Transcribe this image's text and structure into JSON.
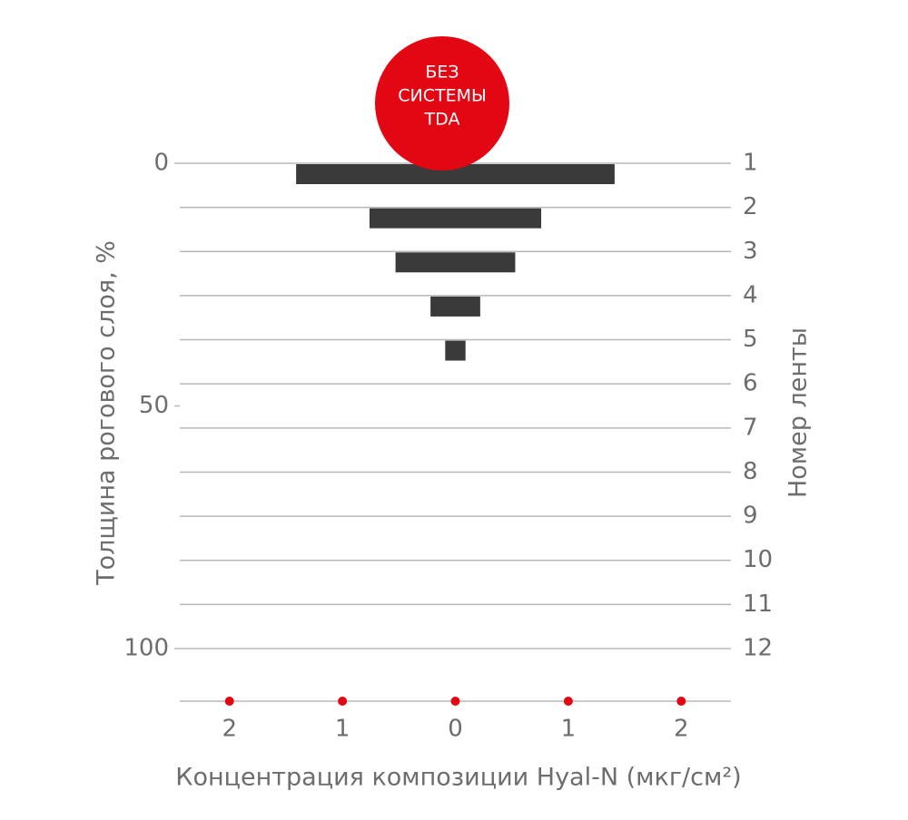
{
  "chart_data": {
    "type": "bar",
    "annotation": [
      "БЕЗ",
      "СИСТЕМЫ",
      "TDA"
    ],
    "annotation_color": "#e30613",
    "y_title": "Толщина рогового слоя, %",
    "y2_title": "Номер ленты",
    "x_title": "Концентрация композиции Hyal-N (мкг/см²)",
    "categories": [
      "1",
      "2",
      "3",
      "4",
      "5",
      "6",
      "7",
      "8",
      "9",
      "10",
      "11",
      "12"
    ],
    "values": [
      1.41,
      0.76,
      0.53,
      0.22,
      0.09,
      null,
      null,
      null,
      null,
      null,
      null,
      null
    ],
    "color": "#3a3a3a",
    "ylim": [
      0,
      100
    ],
    "yticks": [
      0,
      50,
      100
    ],
    "xlim": [
      -2.44,
      2.44
    ],
    "xticks": [
      {
        "value": -2,
        "label": "2"
      },
      {
        "value": -1,
        "label": "1"
      },
      0,
      1,
      2
    ],
    "xtick_marker_color": "#e30613",
    "grid": true
  }
}
